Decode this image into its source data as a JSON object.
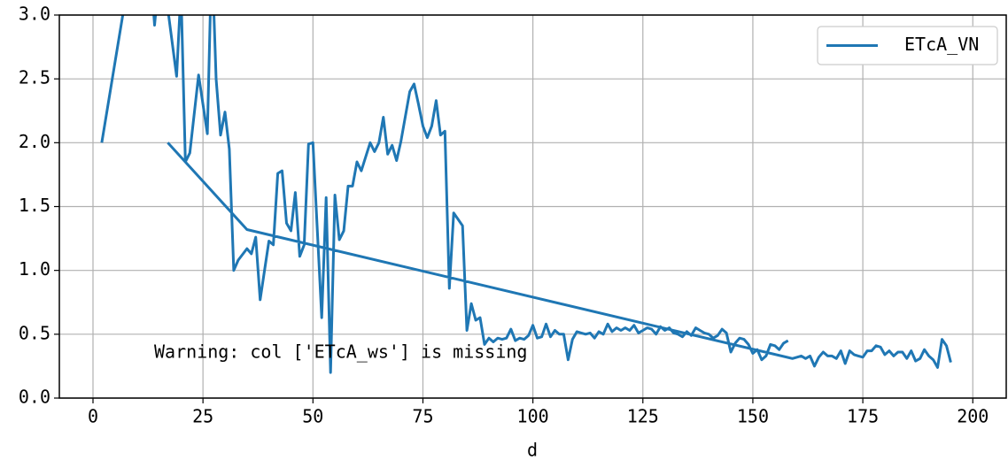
{
  "chart_data": {
    "type": "line",
    "xlabel": "d",
    "annotation": "Warning: col ['ETcA_ws'] is missing",
    "x": [
      2,
      7,
      13,
      14,
      15,
      17,
      19,
      20,
      21,
      22,
      24,
      26,
      27,
      28,
      29,
      30,
      31,
      32,
      33,
      35,
      36,
      37,
      38,
      40,
      41,
      42,
      43,
      44,
      45,
      46,
      47,
      48,
      49,
      50,
      52,
      53,
      54,
      55,
      56,
      57,
      58,
      59,
      60,
      61,
      63,
      64,
      65,
      66,
      67,
      68,
      69,
      70,
      72,
      73,
      74,
      75,
      76,
      77,
      78,
      79,
      80,
      81,
      82,
      84,
      85,
      86,
      87,
      88,
      89,
      90,
      91,
      92,
      93,
      94,
      95,
      96,
      97,
      98,
      99,
      100,
      101,
      102,
      103,
      104,
      105,
      106,
      107,
      108,
      109,
      110,
      111,
      112,
      113,
      114,
      115,
      116,
      117,
      118,
      119,
      120,
      121,
      122,
      123,
      124,
      125,
      126,
      127,
      128,
      129,
      130,
      131,
      132,
      133,
      134,
      135,
      136,
      137,
      138,
      139,
      140,
      141,
      142,
      143,
      144,
      145,
      146,
      147,
      148,
      149,
      150,
      151,
      152,
      153,
      154,
      155,
      156,
      157,
      158,
      null,
      17,
      35,
      159,
      161,
      162,
      163,
      164,
      165,
      166,
      167,
      168,
      169,
      170,
      171,
      172,
      173,
      174,
      175,
      176,
      177,
      178,
      179,
      180,
      181,
      182,
      183,
      184,
      185,
      186,
      187,
      188,
      189,
      190,
      191,
      192,
      193,
      194,
      195
    ],
    "series": [
      {
        "name": "ETcA_VN",
        "color": "#1f77b4",
        "values": [
          2.0,
          3.05,
          3.4,
          2.92,
          3.3,
          3.05,
          2.52,
          3.2,
          1.85,
          1.92,
          2.53,
          2.07,
          3.5,
          2.5,
          2.06,
          2.24,
          1.95,
          1.0,
          1.08,
          1.17,
          1.13,
          1.26,
          0.77,
          1.23,
          1.2,
          1.76,
          1.78,
          1.37,
          1.31,
          1.61,
          1.11,
          1.2,
          1.99,
          2.0,
          0.63,
          1.57,
          0.2,
          1.59,
          1.24,
          1.31,
          1.66,
          1.66,
          1.85,
          1.78,
          2.0,
          1.93,
          2.0,
          2.2,
          1.91,
          1.98,
          1.86,
          2.01,
          2.4,
          2.46,
          2.3,
          2.13,
          2.04,
          2.13,
          2.33,
          2.06,
          2.09,
          0.86,
          1.45,
          1.35,
          0.53,
          0.74,
          0.61,
          0.63,
          0.42,
          0.47,
          0.44,
          0.47,
          0.46,
          0.47,
          0.54,
          0.45,
          0.47,
          0.46,
          0.49,
          0.57,
          0.47,
          0.48,
          0.58,
          0.48,
          0.53,
          0.5,
          0.5,
          0.3,
          0.46,
          0.52,
          0.51,
          0.5,
          0.51,
          0.47,
          0.52,
          0.5,
          0.58,
          0.52,
          0.55,
          0.53,
          0.55,
          0.53,
          0.57,
          0.51,
          0.53,
          0.55,
          0.54,
          0.5,
          0.56,
          0.53,
          0.55,
          0.51,
          0.5,
          0.48,
          0.52,
          0.49,
          0.55,
          0.53,
          0.51,
          0.5,
          0.47,
          0.49,
          0.54,
          0.51,
          0.36,
          0.43,
          0.47,
          0.46,
          0.42,
          0.35,
          0.38,
          0.3,
          0.33,
          0.42,
          0.41,
          0.38,
          0.43,
          0.45,
          null,
          2.0,
          1.32,
          0.31,
          0.33,
          0.31,
          0.33,
          0.25,
          0.32,
          0.36,
          0.33,
          0.33,
          0.31,
          0.37,
          0.27,
          0.37,
          0.34,
          0.33,
          0.32,
          0.37,
          0.37,
          0.41,
          0.4,
          0.34,
          0.37,
          0.33,
          0.36,
          0.36,
          0.31,
          0.37,
          0.29,
          0.31,
          0.38,
          0.33,
          0.3,
          0.24,
          0.46,
          0.41,
          0.28
        ]
      }
    ],
    "xlim": [
      -7.65,
      207.6
    ],
    "xticks": [
      0,
      25,
      50,
      75,
      100,
      125,
      150,
      175,
      200
    ],
    "ylim": [
      0,
      3
    ],
    "yticks": [
      {
        "value": 0,
        "label": "0.0"
      },
      0.5,
      {
        "value": 1,
        "label": "1.0"
      },
      1.5,
      {
        "value": 2,
        "label": "2.0"
      },
      2.5,
      {
        "value": 3,
        "label": "3.0"
      }
    ],
    "grid": true,
    "legend": "upper right"
  }
}
